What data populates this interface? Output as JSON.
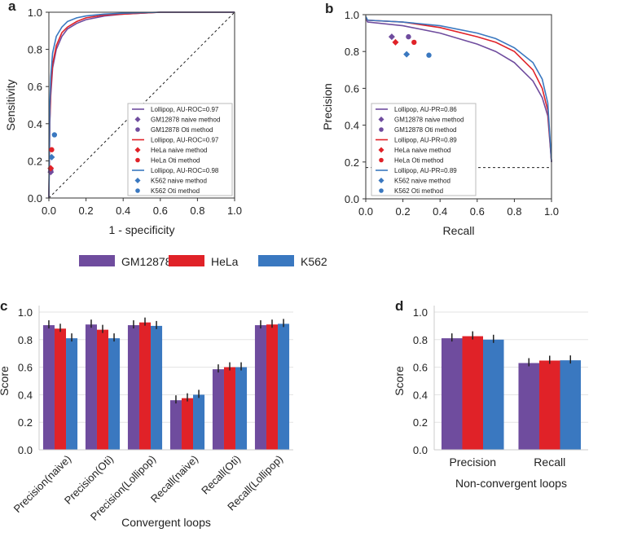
{
  "colors": {
    "GM12878": "#6f4c9e",
    "HeLa": "#e02228",
    "K562": "#3a78c0"
  },
  "chart_data": [
    {
      "panel": "a",
      "type": "line",
      "xlabel": "1 - specificity",
      "ylabel": "Sensitivity",
      "xlim": [
        0,
        1
      ],
      "ylim": [
        0,
        1
      ],
      "ticks": [
        "0.0",
        "0.2",
        "0.4",
        "0.6",
        "0.8",
        "1.0"
      ],
      "legend_position": "bottom-right",
      "series": [
        {
          "name": "Lollipop, AU-ROC=0.97",
          "color": "#6f4c9e",
          "x": [
            0,
            0.005,
            0.01,
            0.02,
            0.04,
            0.07,
            0.1,
            0.15,
            0.2,
            0.3,
            0.4,
            0.6,
            1
          ],
          "y": [
            0,
            0.4,
            0.55,
            0.7,
            0.8,
            0.87,
            0.91,
            0.94,
            0.96,
            0.98,
            0.99,
            1,
            1
          ]
        },
        {
          "name": "Lollipop, AU-ROC=0.97",
          "color": "#e02228",
          "x": [
            0,
            0.005,
            0.01,
            0.02,
            0.04,
            0.07,
            0.1,
            0.15,
            0.2,
            0.3,
            0.4,
            0.6,
            1
          ],
          "y": [
            0,
            0.42,
            0.58,
            0.72,
            0.82,
            0.89,
            0.92,
            0.95,
            0.97,
            0.985,
            0.99,
            1,
            1
          ]
        },
        {
          "name": "Lollipop, AU-ROC=0.98",
          "color": "#3a78c0",
          "x": [
            0,
            0.005,
            0.01,
            0.02,
            0.04,
            0.07,
            0.1,
            0.15,
            0.2,
            0.3,
            0.4,
            0.6,
            1
          ],
          "y": [
            0,
            0.5,
            0.65,
            0.78,
            0.87,
            0.92,
            0.95,
            0.97,
            0.98,
            0.99,
            0.995,
            1,
            1
          ]
        }
      ],
      "points": [
        {
          "name": "GM12878 naive method",
          "marker": "diamond",
          "color": "#6f4c9e",
          "x": 0.01,
          "y": 0.14
        },
        {
          "name": "GM12878 Oti method",
          "marker": "circle",
          "color": "#6f4c9e",
          "x": 0.01,
          "y": 0.15
        },
        {
          "name": "HeLa naive method",
          "marker": "diamond",
          "color": "#e02228",
          "x": 0.01,
          "y": 0.16
        },
        {
          "name": "HeLa Oti method",
          "marker": "circle",
          "color": "#e02228",
          "x": 0.015,
          "y": 0.26
        },
        {
          "name": "K562 naive method",
          "marker": "diamond",
          "color": "#3a78c0",
          "x": 0.015,
          "y": 0.22
        },
        {
          "name": "K562 Oti method",
          "marker": "circle",
          "color": "#3a78c0",
          "x": 0.03,
          "y": 0.34
        }
      ],
      "reference_line": "diagonal dashed"
    },
    {
      "panel": "b",
      "type": "line",
      "xlabel": "Recall",
      "ylabel": "Precision",
      "xlim": [
        0,
        1
      ],
      "ylim": [
        0,
        1
      ],
      "ticks": [
        "0.0",
        "0.2",
        "0.4",
        "0.6",
        "0.8",
        "1.0"
      ],
      "legend_position": "bottom-left",
      "series": [
        {
          "name": "Lollipop, AU-PR=0.86",
          "color": "#6f4c9e",
          "x": [
            0,
            0.01,
            0.2,
            0.4,
            0.6,
            0.7,
            0.8,
            0.9,
            0.95,
            0.98,
            1
          ],
          "y": [
            0.98,
            0.96,
            0.94,
            0.9,
            0.84,
            0.8,
            0.74,
            0.64,
            0.55,
            0.45,
            0.2
          ]
        },
        {
          "name": "Lollipop, AU-PR=0.89",
          "color": "#e02228",
          "x": [
            0,
            0.01,
            0.2,
            0.4,
            0.6,
            0.7,
            0.8,
            0.9,
            0.95,
            0.98,
            1
          ],
          "y": [
            0.98,
            0.97,
            0.96,
            0.93,
            0.88,
            0.85,
            0.8,
            0.7,
            0.6,
            0.48,
            0.2
          ]
        },
        {
          "name": "Lollipop, AU-PR=0.89",
          "color": "#3a78c0",
          "x": [
            0,
            0.01,
            0.2,
            0.4,
            0.6,
            0.7,
            0.8,
            0.9,
            0.95,
            0.98,
            1
          ],
          "y": [
            0.99,
            0.97,
            0.96,
            0.94,
            0.9,
            0.87,
            0.82,
            0.74,
            0.65,
            0.52,
            0.2
          ]
        }
      ],
      "points": [
        {
          "name": "GM12878 naive method",
          "marker": "diamond",
          "color": "#6f4c9e",
          "x": 0.14,
          "y": 0.88
        },
        {
          "name": "GM12878 Oti method",
          "marker": "circle",
          "color": "#6f4c9e",
          "x": 0.23,
          "y": 0.88
        },
        {
          "name": "HeLa naive method",
          "marker": "diamond",
          "color": "#e02228",
          "x": 0.16,
          "y": 0.85
        },
        {
          "name": "HeLa Oti method",
          "marker": "circle",
          "color": "#e02228",
          "x": 0.26,
          "y": 0.85
        },
        {
          "name": "K562 naive method",
          "marker": "diamond",
          "color": "#3a78c0",
          "x": 0.22,
          "y": 0.785
        },
        {
          "name": "K562 Oti method",
          "marker": "circle",
          "color": "#3a78c0",
          "x": 0.34,
          "y": 0.78
        }
      ],
      "baseline": 0.17
    },
    {
      "panel": "c",
      "type": "bar",
      "xlabel": "Convergent loops",
      "ylabel": "Score",
      "ylim": [
        0,
        1
      ],
      "grid": true,
      "yticks": [
        "0.0",
        "0.2",
        "0.4",
        "0.6",
        "0.8",
        "1.0"
      ],
      "legend_position": "top",
      "categories": [
        "Precision(naive)",
        "Precision(Oti)",
        "Precision(Lollipop)",
        "Recall(naive)",
        "Recall(Oti)",
        "Recall(Lollipop)"
      ],
      "series": [
        {
          "name": "GM12878",
          "color": "#6f4c9e",
          "values": [
            0.905,
            0.91,
            0.905,
            0.36,
            0.585,
            0.905
          ]
        },
        {
          "name": "HeLa",
          "color": "#e02228",
          "values": [
            0.88,
            0.872,
            0.925,
            0.375,
            0.6,
            0.91
          ]
        },
        {
          "name": "K562",
          "color": "#3a78c0",
          "values": [
            0.81,
            0.81,
            0.9,
            0.4,
            0.6,
            0.915
          ]
        }
      ]
    },
    {
      "panel": "d",
      "type": "bar",
      "xlabel": "Non-convergent loops",
      "ylabel": "Score",
      "ylim": [
        0,
        1
      ],
      "grid": true,
      "yticks": [
        "0.0",
        "0.2",
        "0.4",
        "0.6",
        "0.8",
        "1.0"
      ],
      "categories": [
        "Precision",
        "Recall"
      ],
      "series": [
        {
          "name": "GM12878",
          "color": "#6f4c9e",
          "values": [
            0.81,
            0.63
          ]
        },
        {
          "name": "HeLa",
          "color": "#e02228",
          "values": [
            0.825,
            0.648
          ]
        },
        {
          "name": "K562",
          "color": "#3a78c0",
          "values": [
            0.8,
            0.65
          ]
        }
      ]
    }
  ]
}
